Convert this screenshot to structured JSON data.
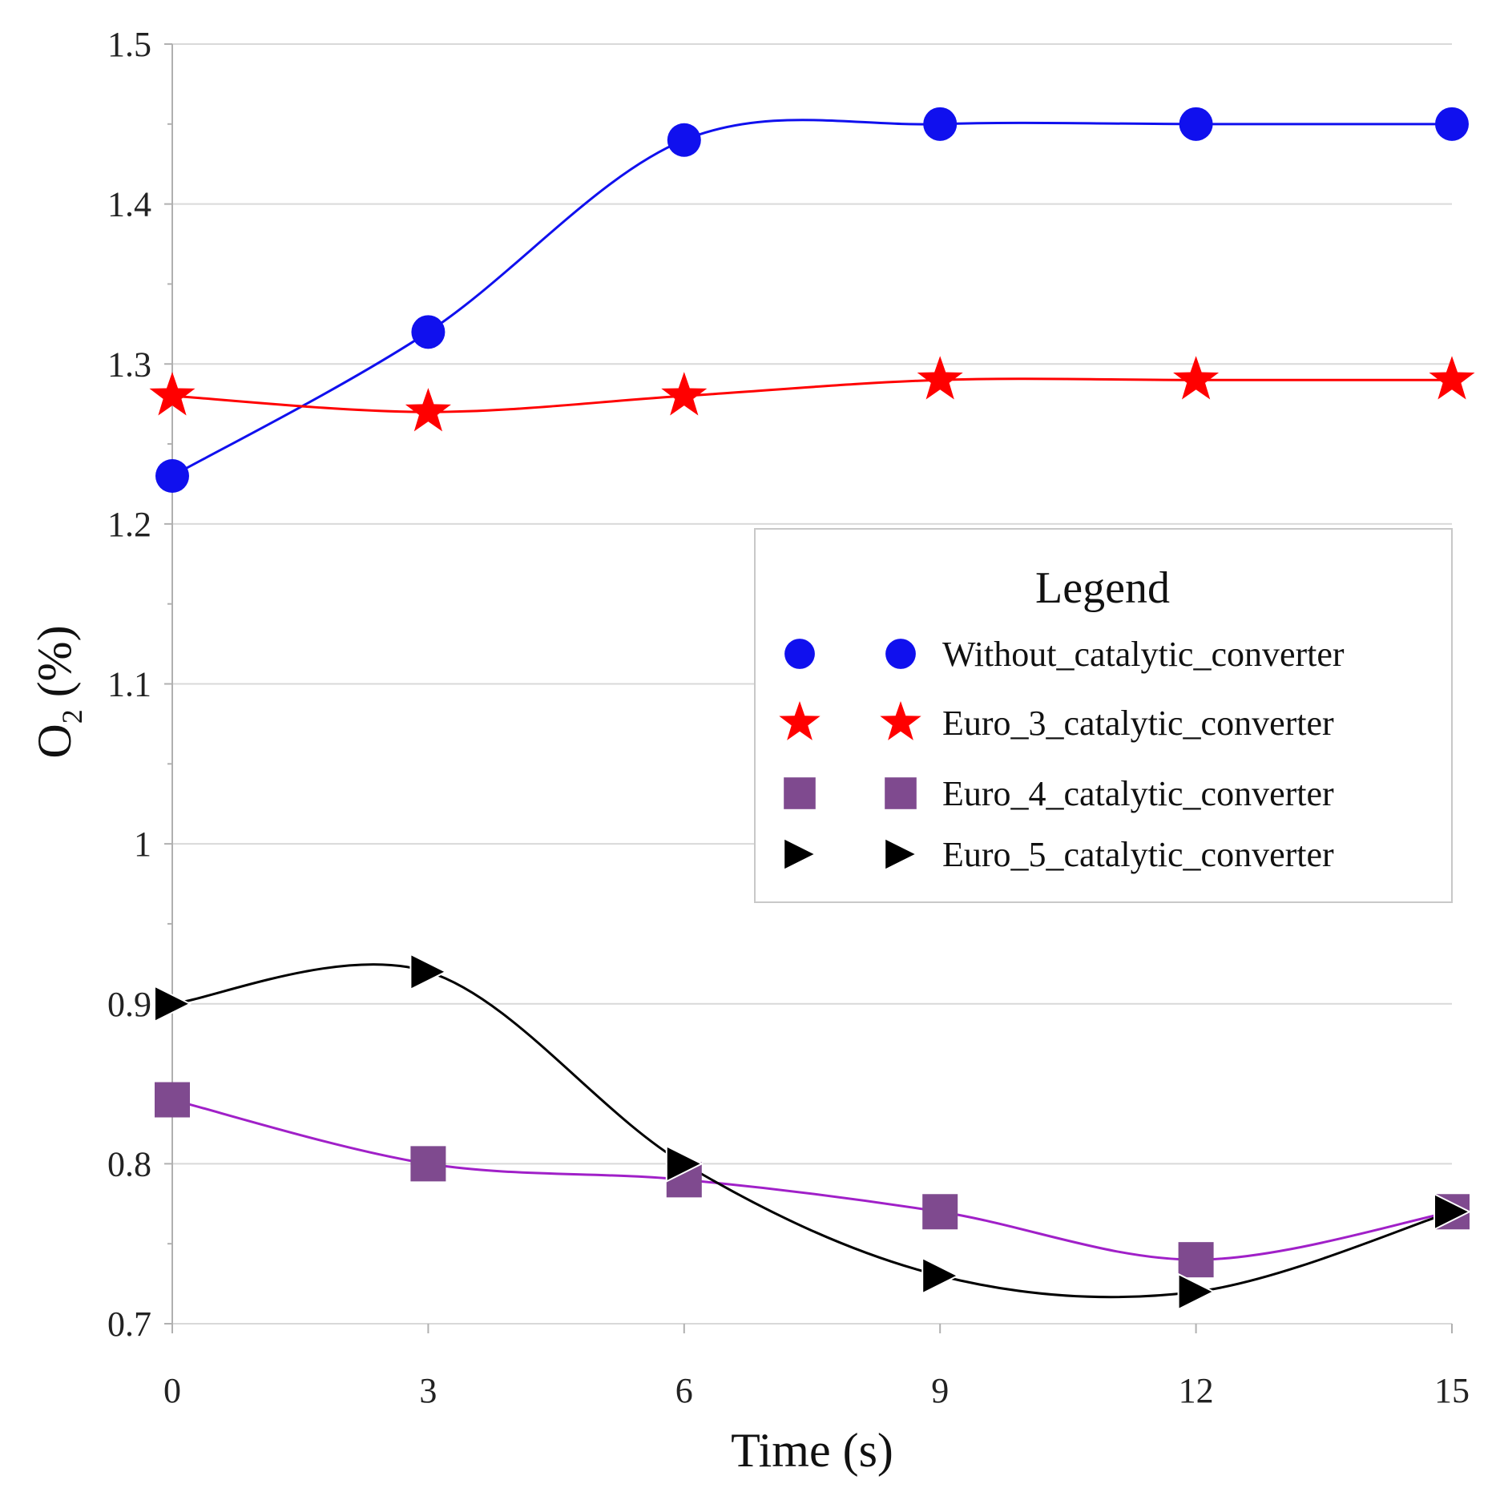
{
  "chart_data": {
    "type": "line",
    "title": "",
    "xlabel": "Time (s)",
    "ylabel_main": "O",
    "ylabel_sub": "2",
    "ylabel_rest": " (%)",
    "x": [
      0,
      3,
      6,
      9,
      12,
      15
    ],
    "xlim": [
      0,
      15
    ],
    "ylim": [
      0.7,
      1.5
    ],
    "xticks": [
      0,
      3,
      6,
      9,
      12,
      15
    ],
    "xtick_labels": [
      "0",
      "3",
      "6",
      "9",
      "12",
      "15"
    ],
    "yticks": [
      0.7,
      0.8,
      0.9,
      1.0,
      1.1,
      1.2,
      1.3,
      1.4,
      1.5
    ],
    "ytick_labels": [
      "0.7",
      "0.8",
      "0.9",
      "1",
      "1.1",
      "1.2",
      "1.3",
      "1.4",
      "1.5"
    ],
    "grid": true,
    "legend_title": "Legend",
    "legend_position": "center-right",
    "series": [
      {
        "name": "Without_catalytic_converter",
        "values": [
          1.23,
          1.32,
          1.44,
          1.45,
          1.45,
          1.45
        ],
        "color": "#1010ee",
        "line_color": "#1010ee",
        "marker": "circle"
      },
      {
        "name": "Euro_3_catalytic_converter",
        "values": [
          1.28,
          1.27,
          1.28,
          1.29,
          1.29,
          1.29
        ],
        "color": "#ff0000",
        "line_color": "#ff0000",
        "marker": "star"
      },
      {
        "name": "Euro_4_catalytic_converter",
        "values": [
          0.84,
          0.8,
          0.79,
          0.77,
          0.74,
          0.77
        ],
        "color": "#7f4a8f",
        "line_color": "#a020c8",
        "marker": "square"
      },
      {
        "name": "Euro_5_catalytic_converter",
        "values": [
          0.9,
          0.92,
          0.8,
          0.73,
          0.72,
          0.77
        ],
        "color": "#000000",
        "line_color": "#000000",
        "marker": "triangle-right"
      }
    ]
  }
}
